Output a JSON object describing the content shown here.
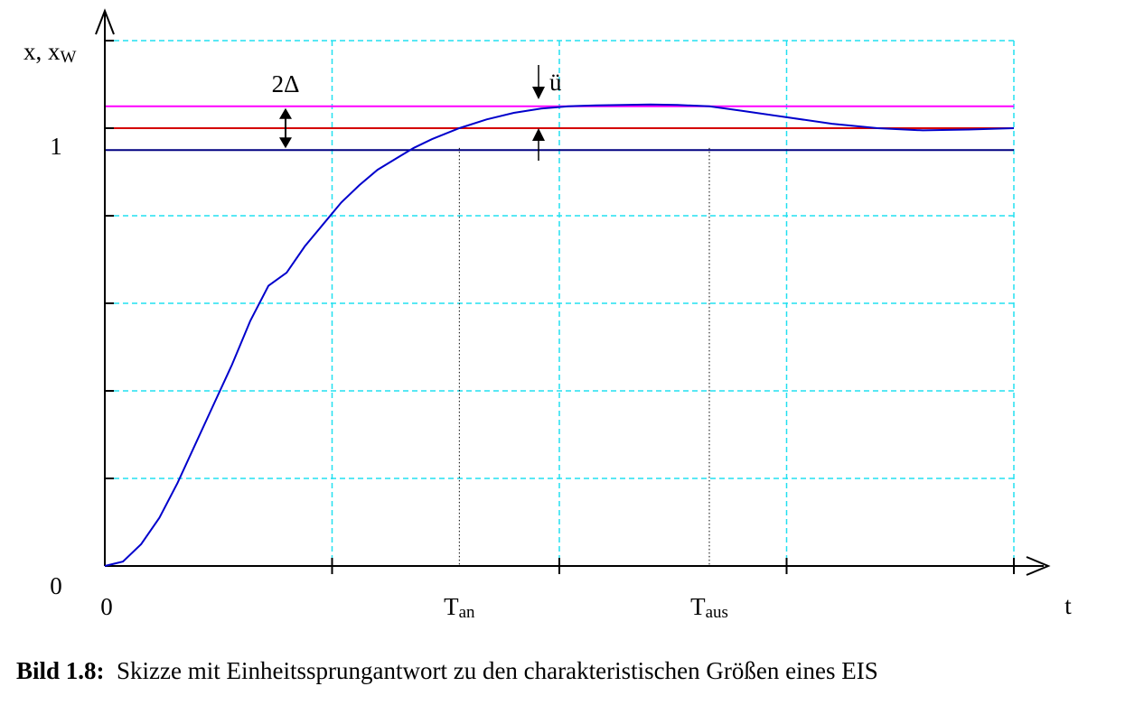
{
  "chart_data": {
    "type": "line",
    "title": "",
    "xlabel": "t",
    "ylabel": "x, x",
    "ylabel_sub": "W",
    "xlim": [
      0,
      10
    ],
    "ylim": [
      0,
      1.2
    ],
    "grid": true,
    "x_ticks": [
      0,
      2.5,
      5,
      7.5,
      10
    ],
    "y_ticks": [
      0,
      0.2,
      0.4,
      0.6,
      0.8,
      1.0,
      1.2
    ],
    "x_tick_labels": [
      {
        "x": 0,
        "text": "0",
        "sub": ""
      },
      {
        "x": 3.9,
        "text": "T",
        "sub": "an"
      },
      {
        "x": 6.65,
        "text": "T",
        "sub": "aus"
      }
    ],
    "y_tick_labels": [
      {
        "y": 0,
        "text": "0"
      },
      {
        "y": 1.0,
        "text": "1"
      }
    ],
    "reference_lines": [
      {
        "y": 1.05,
        "color": "#ff00ff",
        "role": "upper-band"
      },
      {
        "y": 1.0,
        "color": "#d40000",
        "role": "setpoint"
      },
      {
        "y": 0.95,
        "color": "#000080",
        "role": "lower-band"
      }
    ],
    "markers": [
      {
        "x": 3.9,
        "style": "dotted"
      },
      {
        "x": 6.65,
        "style": "dotted"
      }
    ],
    "annotations": {
      "band_label": "2Δ",
      "overshoot_label": "ü"
    },
    "series": [
      {
        "color": "#0000cc",
        "x": [
          0,
          0.2,
          0.4,
          0.6,
          0.8,
          1.0,
          1.2,
          1.4,
          1.6,
          1.8,
          2.0,
          2.2,
          2.4,
          2.6,
          2.8,
          3.0,
          3.2,
          3.4,
          3.6,
          3.9,
          4.2,
          4.5,
          4.8,
          5.1,
          5.4,
          5.7,
          6.0,
          6.3,
          6.65,
          7.0,
          7.5,
          8.0,
          8.5,
          9.0,
          9.5,
          10.0
        ],
        "y": [
          0,
          0.01,
          0.05,
          0.11,
          0.19,
          0.28,
          0.37,
          0.46,
          0.56,
          0.64,
          0.67,
          0.73,
          0.78,
          0.83,
          0.87,
          0.905,
          0.93,
          0.955,
          0.975,
          1.0,
          1.02,
          1.035,
          1.045,
          1.05,
          1.052,
          1.053,
          1.054,
          1.053,
          1.05,
          1.04,
          1.025,
          1.01,
          1.0,
          0.995,
          0.997,
          1.0
        ]
      }
    ]
  },
  "caption": {
    "label": "Bild 1.8:",
    "text": "Skizze mit Einheitssprungantwort zu den charakteristischen Größen eines EIS"
  }
}
